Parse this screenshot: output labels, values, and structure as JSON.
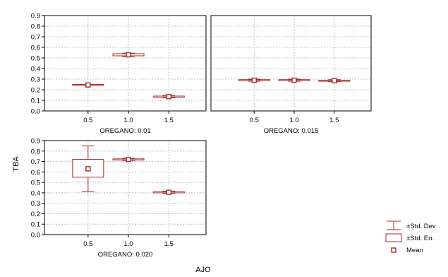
{
  "chart_data": {
    "type": "box",
    "ylabel": "TBA",
    "xlabel": "AJO",
    "ylim": [
      0,
      0.9
    ],
    "yticks": [
      "0.0",
      "0.1",
      "0.2",
      "0.3",
      "0.4",
      "0.5",
      "0.6",
      "0.7",
      "0.8",
      "0.9"
    ],
    "categories": [
      "0.5",
      "1.0",
      "1.5"
    ],
    "panels": [
      {
        "title": "OREGANO: 0.01",
        "means": [
          0.245,
          0.53,
          0.135
        ],
        "se_low": [
          0.24,
          0.52,
          0.13
        ],
        "se_high": [
          0.25,
          0.54,
          0.14
        ],
        "sd_low": [
          0.24,
          0.51,
          0.125
        ],
        "sd_high": [
          0.25,
          0.545,
          0.145
        ]
      },
      {
        "title": "OREGANO: 0.015",
        "means": [
          0.29,
          0.29,
          0.285
        ],
        "se_low": [
          0.285,
          0.285,
          0.28
        ],
        "se_high": [
          0.295,
          0.295,
          0.29
        ],
        "sd_low": [
          0.28,
          0.28,
          0.275
        ],
        "sd_high": [
          0.3,
          0.3,
          0.295
        ]
      },
      {
        "title": "OREGANO: 0.020",
        "means": [
          0.63,
          0.72,
          0.405
        ],
        "se_low": [
          0.55,
          0.715,
          0.4
        ],
        "se_high": [
          0.72,
          0.725,
          0.41
        ],
        "sd_low": [
          0.41,
          0.71,
          0.395
        ],
        "sd_high": [
          0.85,
          0.73,
          0.415
        ]
      }
    ],
    "legend": {
      "position": "bottom-right",
      "items": [
        "±Std. Dev",
        "±Std. Err.",
        "Mean"
      ]
    },
    "colors": {
      "series": "#a52a2a",
      "grid": "#c0c0c0",
      "axis": "#000000"
    },
    "grid": true
  }
}
